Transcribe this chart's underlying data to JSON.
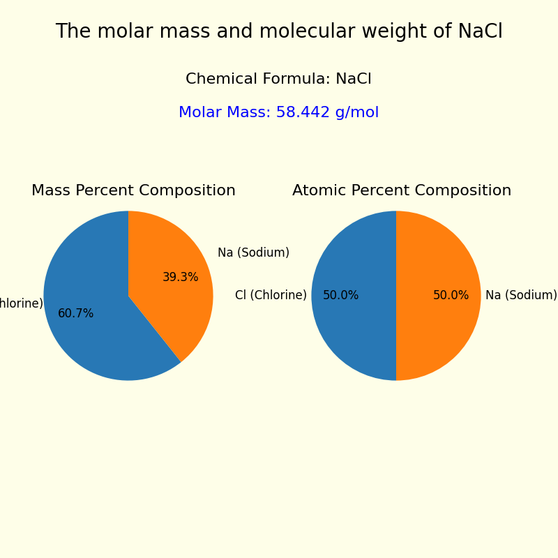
{
  "title": "The molar mass and molecular weight of NaCl",
  "chemical_formula_label": "Chemical Formula: NaCl",
  "molar_mass_label": "Molar Mass: 58.442 g/mol",
  "molar_mass_color": "blue",
  "background_color": "#FEFEE8",
  "title_fontsize": 20,
  "info_fontsize": 16,
  "subtitle_fontsize": 16,
  "pie_label_fontsize": 12,
  "mass_pie_title": "Mass Percent Composition",
  "atomic_pie_title": "Atomic Percent Composition",
  "mass_values": [
    60.7,
    39.3
  ],
  "atomic_values": [
    50.0,
    50.0
  ],
  "labels_cl": "Cl (Chlorine)",
  "labels_na": "Na (Sodium)",
  "color_cl": "#2878B5",
  "color_na": "#FF7F0E",
  "startangle": 90
}
